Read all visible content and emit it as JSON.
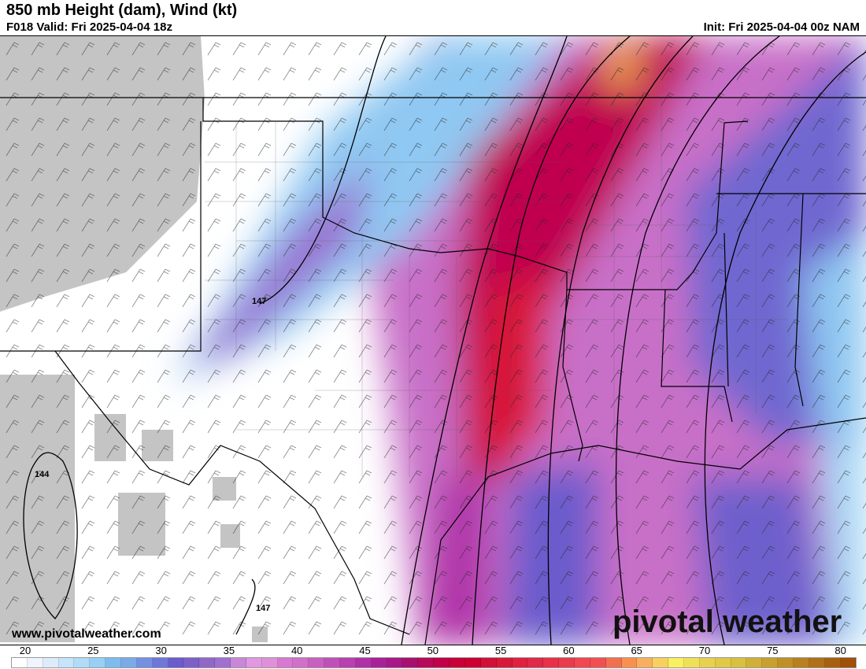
{
  "header": {
    "title": "850 mb Height (dam), Wind (kt)",
    "valid": "F018 Valid: Fri 2025-04-04 18z",
    "init": "Init: Fri 2025-04-04 00z NAM"
  },
  "footer": {
    "website": "www.pivotalweather.com",
    "brand": "pivotal weather"
  },
  "contour_labels": [
    "147",
    "144",
    "147"
  ],
  "colorbar": {
    "ticks": [
      "20",
      "25",
      "30",
      "35",
      "40",
      "45",
      "50",
      "55",
      "60",
      "65",
      "70",
      "75",
      "80"
    ],
    "colors": [
      "#ffffff",
      "#eef5fc",
      "#dcecfb",
      "#c6e4fa",
      "#b0dcf8",
      "#98d0f5",
      "#7dbcee",
      "#7aaae8",
      "#7590e0",
      "#6e78d8",
      "#6a5ccc",
      "#7c60c8",
      "#9068c8",
      "#a070d0",
      "#c888d8",
      "#e098e0",
      "#e090d8",
      "#d878d0",
      "#d070c8",
      "#c860c0",
      "#c050b8",
      "#b840b0",
      "#b030a8",
      "#a82098",
      "#a81888",
      "#a81070",
      "#b80858",
      "#c00048",
      "#c80038",
      "#cc0030",
      "#d01038",
      "#d81838",
      "#e02040",
      "#e02848",
      "#e83048",
      "#e83c4c",
      "#f04850",
      "#f05050",
      "#f07050",
      "#f89050",
      "#f8b060",
      "#f8d060",
      "#f8f060",
      "#f0e058",
      "#e8d050",
      "#e0c848",
      "#d8c040",
      "#d0b038",
      "#c8a030",
      "#c09028",
      "#b88020",
      "#b07018",
      "#a86010",
      "#a05008"
    ]
  }
}
